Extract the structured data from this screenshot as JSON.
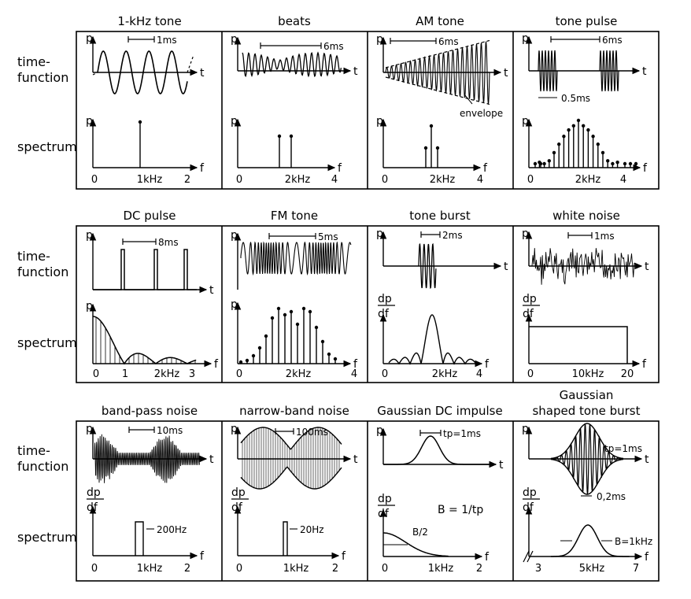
{
  "row_labels": {
    "time_line1": "time-",
    "time_line2": "function",
    "spectrum": "spectrum"
  },
  "panels": [
    {
      "title": "1-kHz tone",
      "time": {
        "yaxis": "p",
        "xaxis": "t",
        "marker": "1ms"
      },
      "spectrum": {
        "yaxis": "p",
        "xaxis": "f",
        "ticks": [
          "0",
          "1kHz",
          "2"
        ]
      }
    },
    {
      "title": "beats",
      "time": {
        "yaxis": "p",
        "xaxis": "t",
        "marker": "6ms"
      },
      "spectrum": {
        "yaxis": "p",
        "xaxis": "f",
        "ticks": [
          "0",
          "2kHz",
          "4"
        ]
      }
    },
    {
      "title": "AM tone",
      "time": {
        "yaxis": "p",
        "xaxis": "t",
        "marker": "6ms",
        "annotation": "envelope"
      },
      "spectrum": {
        "yaxis": "p",
        "xaxis": "f",
        "ticks": [
          "0",
          "2kHz",
          "4"
        ]
      }
    },
    {
      "title": "tone pulse",
      "time": {
        "yaxis": "p",
        "xaxis": "t",
        "marker": "6ms",
        "marker2": "0.5ms"
      },
      "spectrum": {
        "yaxis": "p",
        "xaxis": "f",
        "ticks": [
          "0",
          "2kHz",
          "4"
        ]
      }
    },
    {
      "title": "DC pulse",
      "time": {
        "yaxis": "p",
        "xaxis": "t",
        "marker": "8ms"
      },
      "spectrum": {
        "yaxis": "p",
        "xaxis": "f",
        "ticks": [
          "0",
          "1",
          "2kHz",
          "3"
        ]
      }
    },
    {
      "title": "FM tone",
      "time": {
        "yaxis": "p",
        "xaxis": "t",
        "marker": "5ms"
      },
      "spectrum": {
        "yaxis": "p",
        "xaxis": "f",
        "ticks": [
          "0",
          "2kHz",
          "4"
        ]
      }
    },
    {
      "title": "tone burst",
      "time": {
        "yaxis": "p",
        "xaxis": "t",
        "marker": "2ms"
      },
      "spectrum": {
        "ylabel_top": "dp",
        "ylabel_bottom": "df",
        "xaxis": "f",
        "ticks": [
          "0",
          "2kHz",
          "4"
        ]
      }
    },
    {
      "title": "white noise",
      "time": {
        "yaxis": "p",
        "xaxis": "t",
        "marker": "1ms"
      },
      "spectrum": {
        "ylabel_top": "dp",
        "ylabel_bottom": "df",
        "xaxis": "f",
        "ticks": [
          "0",
          "10kHz",
          "20"
        ]
      }
    },
    {
      "title": "band-pass noise",
      "time": {
        "yaxis": "p",
        "xaxis": "t",
        "marker": "10ms"
      },
      "spectrum": {
        "ylabel_top": "dp",
        "ylabel_bottom": "df",
        "xaxis": "f",
        "ticks": [
          "0",
          "1kHz",
          "2"
        ],
        "annotation": "200Hz"
      }
    },
    {
      "title": "narrow-band noise",
      "time": {
        "yaxis": "p",
        "xaxis": "t",
        "marker": "100ms"
      },
      "spectrum": {
        "ylabel_top": "dp",
        "ylabel_bottom": "df",
        "xaxis": "f",
        "ticks": [
          "0",
          "1kHz",
          "2"
        ],
        "annotation": "20Hz"
      }
    },
    {
      "title": "Gaussian DC impulse",
      "time": {
        "yaxis": "p",
        "xaxis": "t",
        "marker": "tp=1ms"
      },
      "spectrum": {
        "ylabel_top": "dp",
        "ylabel_bottom": "df",
        "xaxis": "f",
        "ticks": [
          "0",
          "1kHz",
          "2"
        ],
        "annotation": "B/2",
        "formula": "B = 1/tp"
      }
    },
    {
      "title_line1": "Gaussian",
      "title": "shaped tone burst",
      "time": {
        "yaxis": "p",
        "xaxis": "t",
        "marker": "tp=1ms",
        "marker2": "0,2ms"
      },
      "spectrum": {
        "ylabel_top": "dp",
        "ylabel_bottom": "df",
        "xaxis": "f",
        "ticks": [
          "3",
          "5kHz",
          "7"
        ],
        "annotation": "B=1kHz"
      }
    }
  ]
}
